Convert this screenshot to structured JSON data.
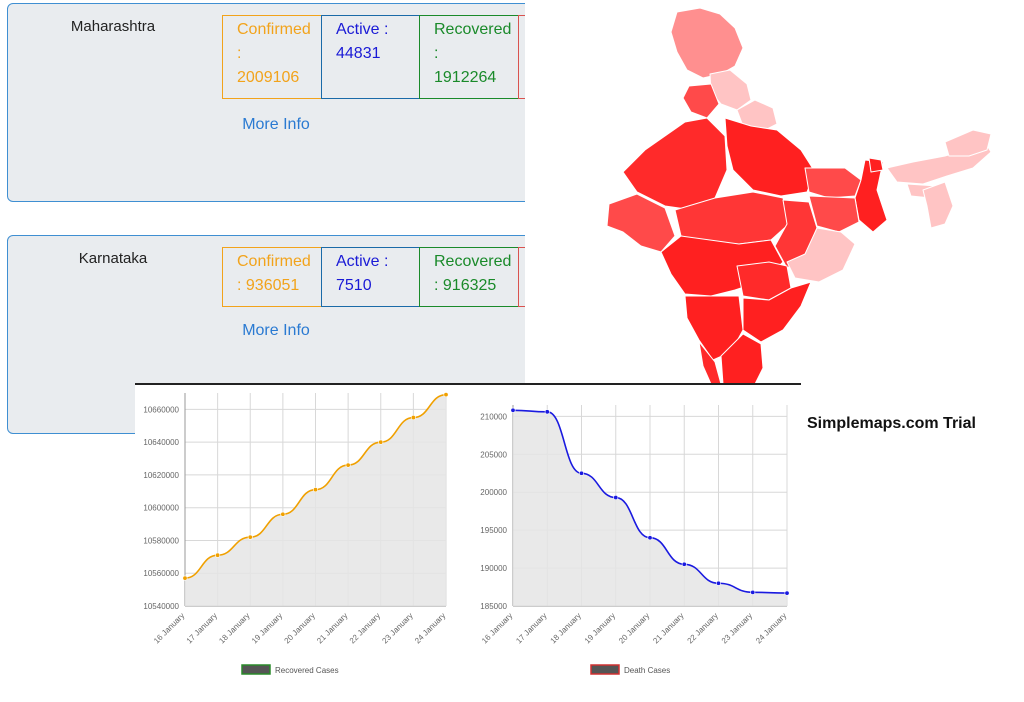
{
  "states": [
    {
      "name": "Maharashtra",
      "confirmed_label": "Confirmed",
      "confirmed_value": "2009106",
      "active_label": "Active :",
      "active_value": "44831",
      "recovered_label": "Recovered",
      "recovered_value": "1912264",
      "more_info": "More Info"
    },
    {
      "name": "Karnataka",
      "confirmed_label": "Confirmed",
      "confirmed_value": "936051",
      "active_label": "Active :",
      "active_value": "7510",
      "recovered_label": "Recovered",
      "recovered_value": "916325",
      "more_info": "More Info"
    }
  ],
  "map": {
    "watermark": "Simplemaps.com Trial",
    "colors": {
      "dark": "#ff1f1f",
      "medium": "#ff4a4a",
      "light": "#ff8f8f",
      "pale": "#ffc4c4"
    }
  },
  "chart_data": [
    {
      "type": "area",
      "x": [
        "16 January",
        "17 January",
        "18 January",
        "19 January",
        "20 January",
        "21 January",
        "22 January",
        "23 January",
        "24 January"
      ],
      "series": [
        {
          "name": "Recovered Cases",
          "values": [
            10557000,
            10571000,
            10582000,
            10596000,
            10611000,
            10626000,
            10640000,
            10655000,
            10669000
          ]
        }
      ],
      "yticks": [
        "10540000",
        "10560000",
        "10580000",
        "10600000",
        "10620000",
        "10640000",
        "10660000"
      ],
      "ylim": [
        10540000,
        10670000
      ],
      "grid": true,
      "legend": "bottom",
      "colors": {
        "line": "#f0a000",
        "fill": "#e5e5e5"
      }
    },
    {
      "type": "area",
      "x": [
        "16 January",
        "17 January",
        "18 January",
        "19 January",
        "20 January",
        "21 January",
        "22 January",
        "23 January",
        "24 January"
      ],
      "series": [
        {
          "name": "Death Cases",
          "values": [
            210800,
            210600,
            202500,
            199300,
            194000,
            190500,
            188000,
            186800,
            186700
          ]
        }
      ],
      "yticks": [
        "185000",
        "190000",
        "195000",
        "200000",
        "205000",
        "210000"
      ],
      "ylim": [
        185000,
        211500
      ],
      "grid": true,
      "legend": "bottom",
      "colors": {
        "line": "#1a1ae0",
        "fill": "#e5e5e5"
      }
    }
  ]
}
